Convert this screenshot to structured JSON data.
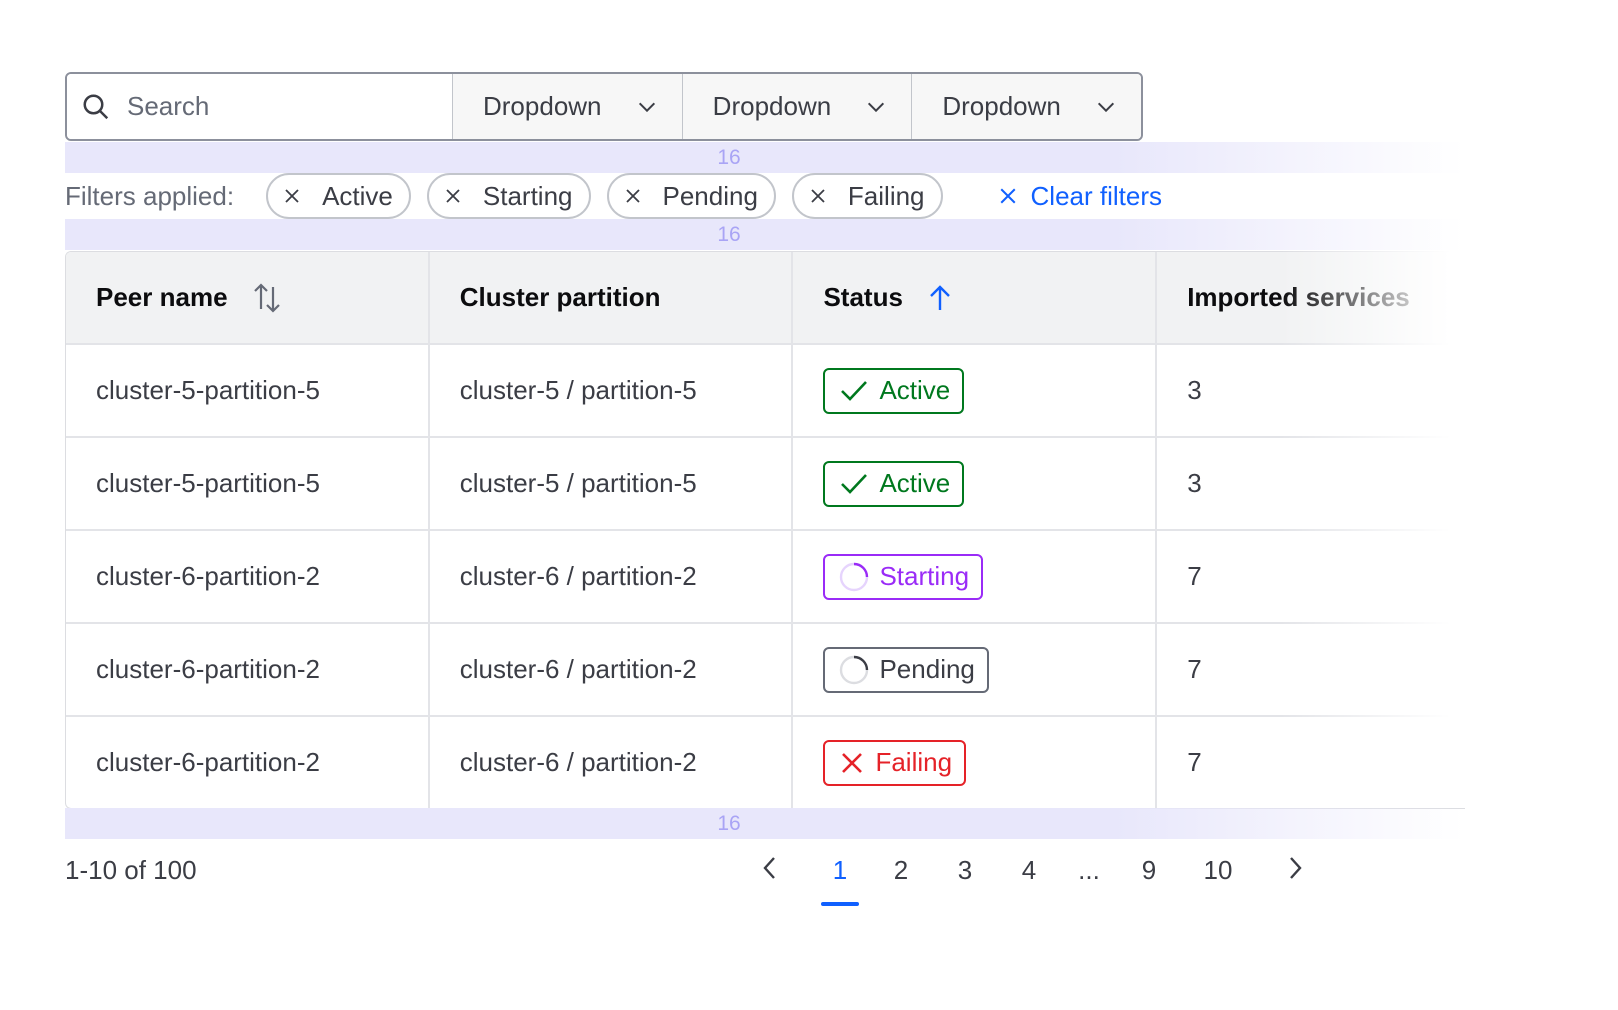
{
  "search": {
    "placeholder": "Search"
  },
  "dropdowns": [
    {
      "label": "Dropdown"
    },
    {
      "label": "Dropdown"
    },
    {
      "label": "Dropdown"
    }
  ],
  "spacing_label": "16",
  "filters": {
    "label": "Filters applied:",
    "chips": [
      "Active",
      "Starting",
      "Pending",
      "Failing"
    ],
    "clear_label": "Clear filters"
  },
  "table": {
    "columns": [
      "Peer name",
      "Cluster partition",
      "Status",
      "Imported services"
    ],
    "rows": [
      {
        "peer": "cluster-5-partition-5",
        "partition": "cluster-5 / partition-5",
        "status": "Active",
        "services": "3"
      },
      {
        "peer": "cluster-5-partition-5",
        "partition": "cluster-5 / partition-5",
        "status": "Active",
        "services": "3"
      },
      {
        "peer": "cluster-6-partition-2",
        "partition": "cluster-6 / partition-2",
        "status": "Starting",
        "services": "7"
      },
      {
        "peer": "cluster-6-partition-2",
        "partition": "cluster-6 / partition-2",
        "status": "Pending",
        "services": "7"
      },
      {
        "peer": "cluster-6-partition-2",
        "partition": "cluster-6 / partition-2",
        "status": "Failing",
        "services": "7"
      }
    ]
  },
  "status_colors": {
    "Active": "#00781e",
    "Starting": "#9a2bf7",
    "Pending": "#656a76",
    "Failing": "#e52228"
  },
  "accent": "#1060ff",
  "pagination": {
    "summary": "1-10 of 100",
    "pages": [
      "1",
      "2",
      "3",
      "4",
      "...",
      "9",
      "10"
    ],
    "current": "1"
  }
}
